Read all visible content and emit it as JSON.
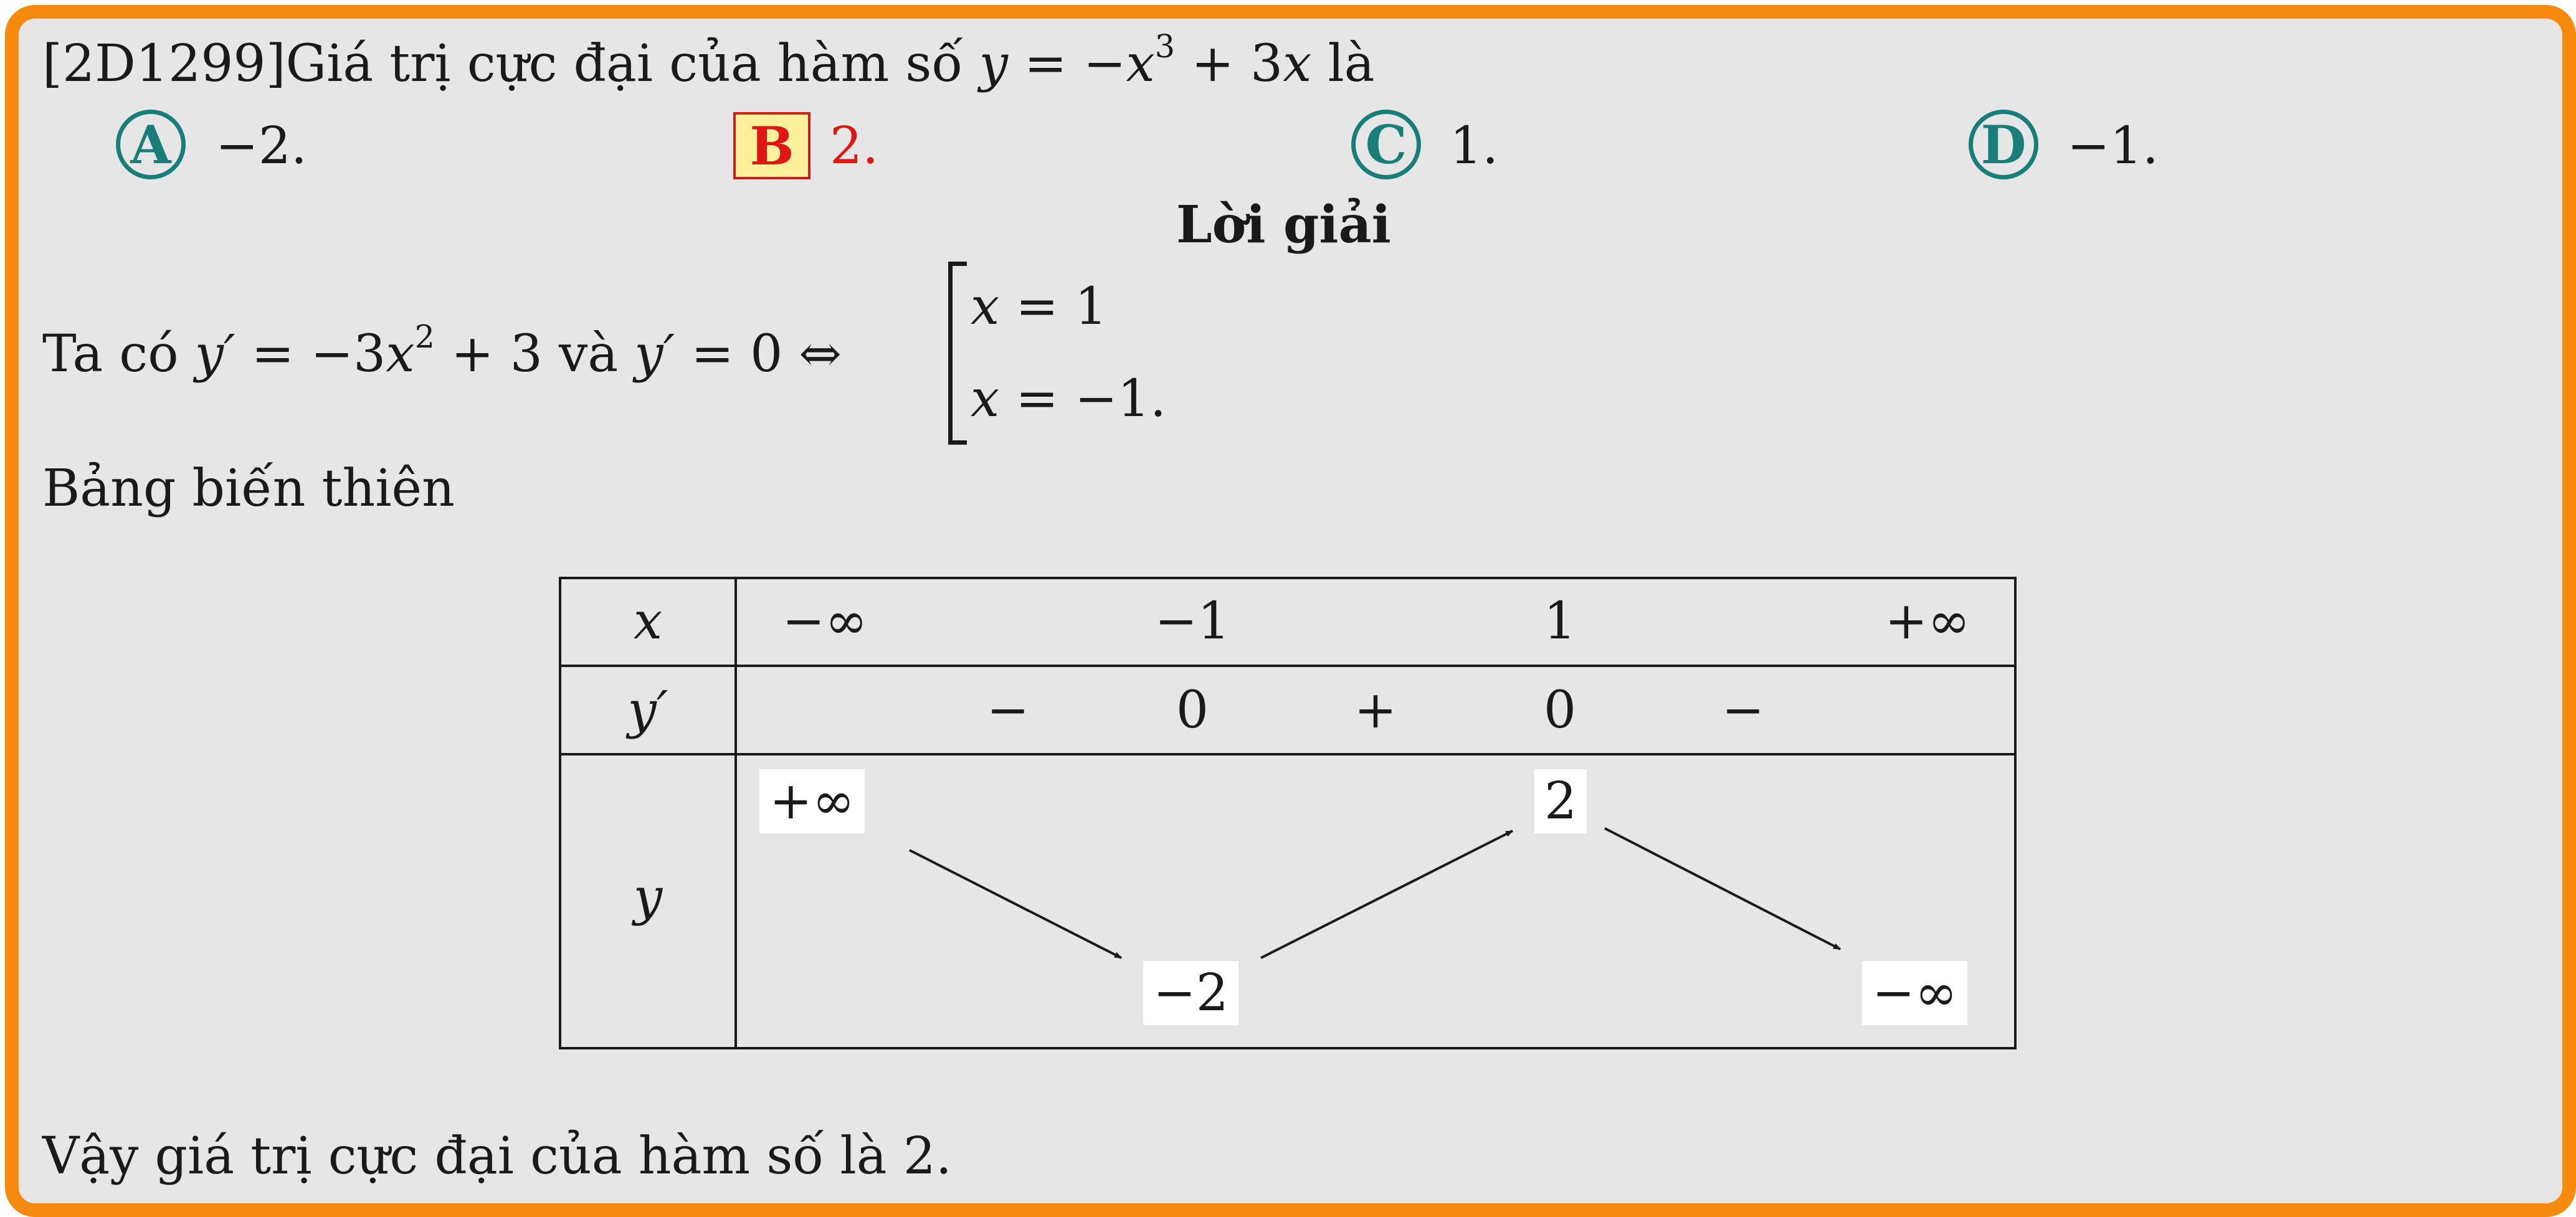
{
  "question": {
    "code": "[2D1299]",
    "text": "Giá trị cực đại của hàm số",
    "formula_var": "y",
    "formula_eq": " = −",
    "formula_x": "x",
    "formula_exp": "3",
    "formula_mid": " + 3",
    "formula_x2": "x",
    "text_end": " là"
  },
  "options": [
    {
      "letter": "A",
      "value": "−2."
    },
    {
      "letter": "B",
      "value": "2.",
      "correct": true
    },
    {
      "letter": "C",
      "value": "1."
    },
    {
      "letter": "D",
      "value": "−1."
    }
  ],
  "solution": {
    "heading": "Lời giải",
    "deriv_intro": "Ta có",
    "deriv_y": "y′",
    "deriv_expr_a": " = −3",
    "deriv_x": "x",
    "deriv_exp": "2",
    "deriv_expr_b": " + 3 và ",
    "deriv_y2": "y′",
    "deriv_zero": " = 0 ⇔",
    "root1_var": "x",
    "root1_val": " = 1",
    "root2_var": "x",
    "root2_val": " = −1.",
    "table_title": "Bảng biến thiên",
    "conclusion": "Vậy giá trị cực đại của hàm số là 2."
  },
  "variation_table": {
    "row_labels": {
      "x": "x",
      "yp": "y′",
      "y": "y"
    },
    "x_values": [
      "−∞",
      "−1",
      "1",
      "+∞"
    ],
    "yp_values": [
      "−",
      "0",
      "+",
      "0",
      "−"
    ],
    "y_values": [
      "+∞",
      "−2",
      "2",
      "−∞"
    ]
  }
}
